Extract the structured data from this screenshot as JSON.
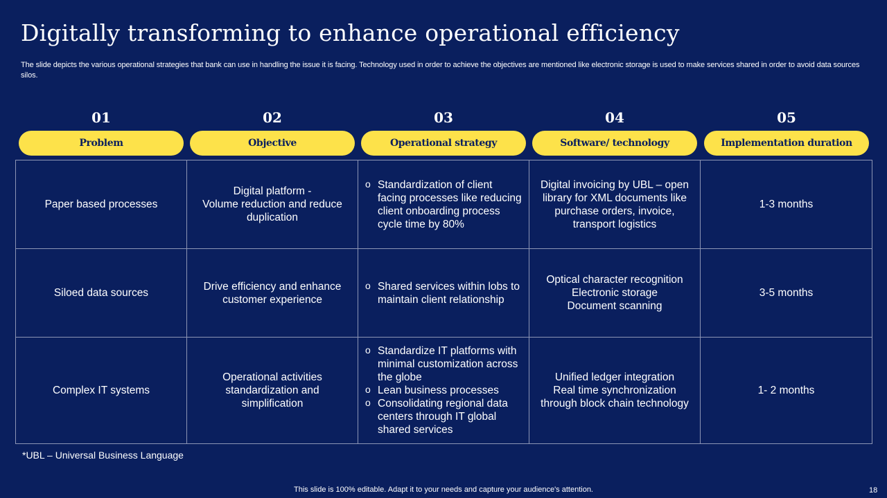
{
  "slide": {
    "title": "Digitally transforming to enhance operational efficiency",
    "subtitle": "The slide depicts the various operational strategies that bank can use in handling the issue it is facing. Technology used in order to achieve the objectives are mentioned like  electronic storage is used to make services shared in order to  avoid data sources silos.",
    "footnote": "*UBL – Universal Business Language",
    "footer": "This slide is 100% editable. Adapt it to your needs and capture your audience's attention.",
    "page_number": "18"
  },
  "columns": [
    {
      "number": "01",
      "label": "Problem"
    },
    {
      "number": "02",
      "label": "Objective"
    },
    {
      "number": "03",
      "label": "Operational strategy"
    },
    {
      "number": "04",
      "label": "Software/ technology"
    },
    {
      "number": "05",
      "label": "Implementation duration"
    }
  ],
  "rows": [
    {
      "problem": "Paper based processes",
      "objective": [
        "Digital platform -",
        "Volume reduction and reduce",
        "duplication"
      ],
      "strategy": [
        "Standardization of client facing processes like reducing client onboarding process cycle time by 80%"
      ],
      "technology": [
        "Digital invoicing by UBL  – open library for XML documents like purchase orders, invoice, transport logistics"
      ],
      "duration": "1-3 months"
    },
    {
      "problem": "Siloed data sources",
      "objective": [
        "Drive efficiency and enhance",
        "customer experience"
      ],
      "strategy": [
        "Shared services within lobs to maintain client relationship"
      ],
      "technology": [
        "Optical character recognition",
        "Electronic storage",
        "Document scanning"
      ],
      "duration": "3-5 months"
    },
    {
      "problem": "Complex IT systems",
      "objective": [
        "Operational activities",
        "standardization and",
        "simplification"
      ],
      "strategy": [
        "Standardize IT platforms with minimal customization across the globe",
        "Lean business processes",
        "Consolidating regional data centers through IT global shared services"
      ],
      "technology": [
        "Unified ledger integration",
        "Real time synchronization",
        "through block chain technology"
      ],
      "duration": "1- 2 months"
    }
  ]
}
